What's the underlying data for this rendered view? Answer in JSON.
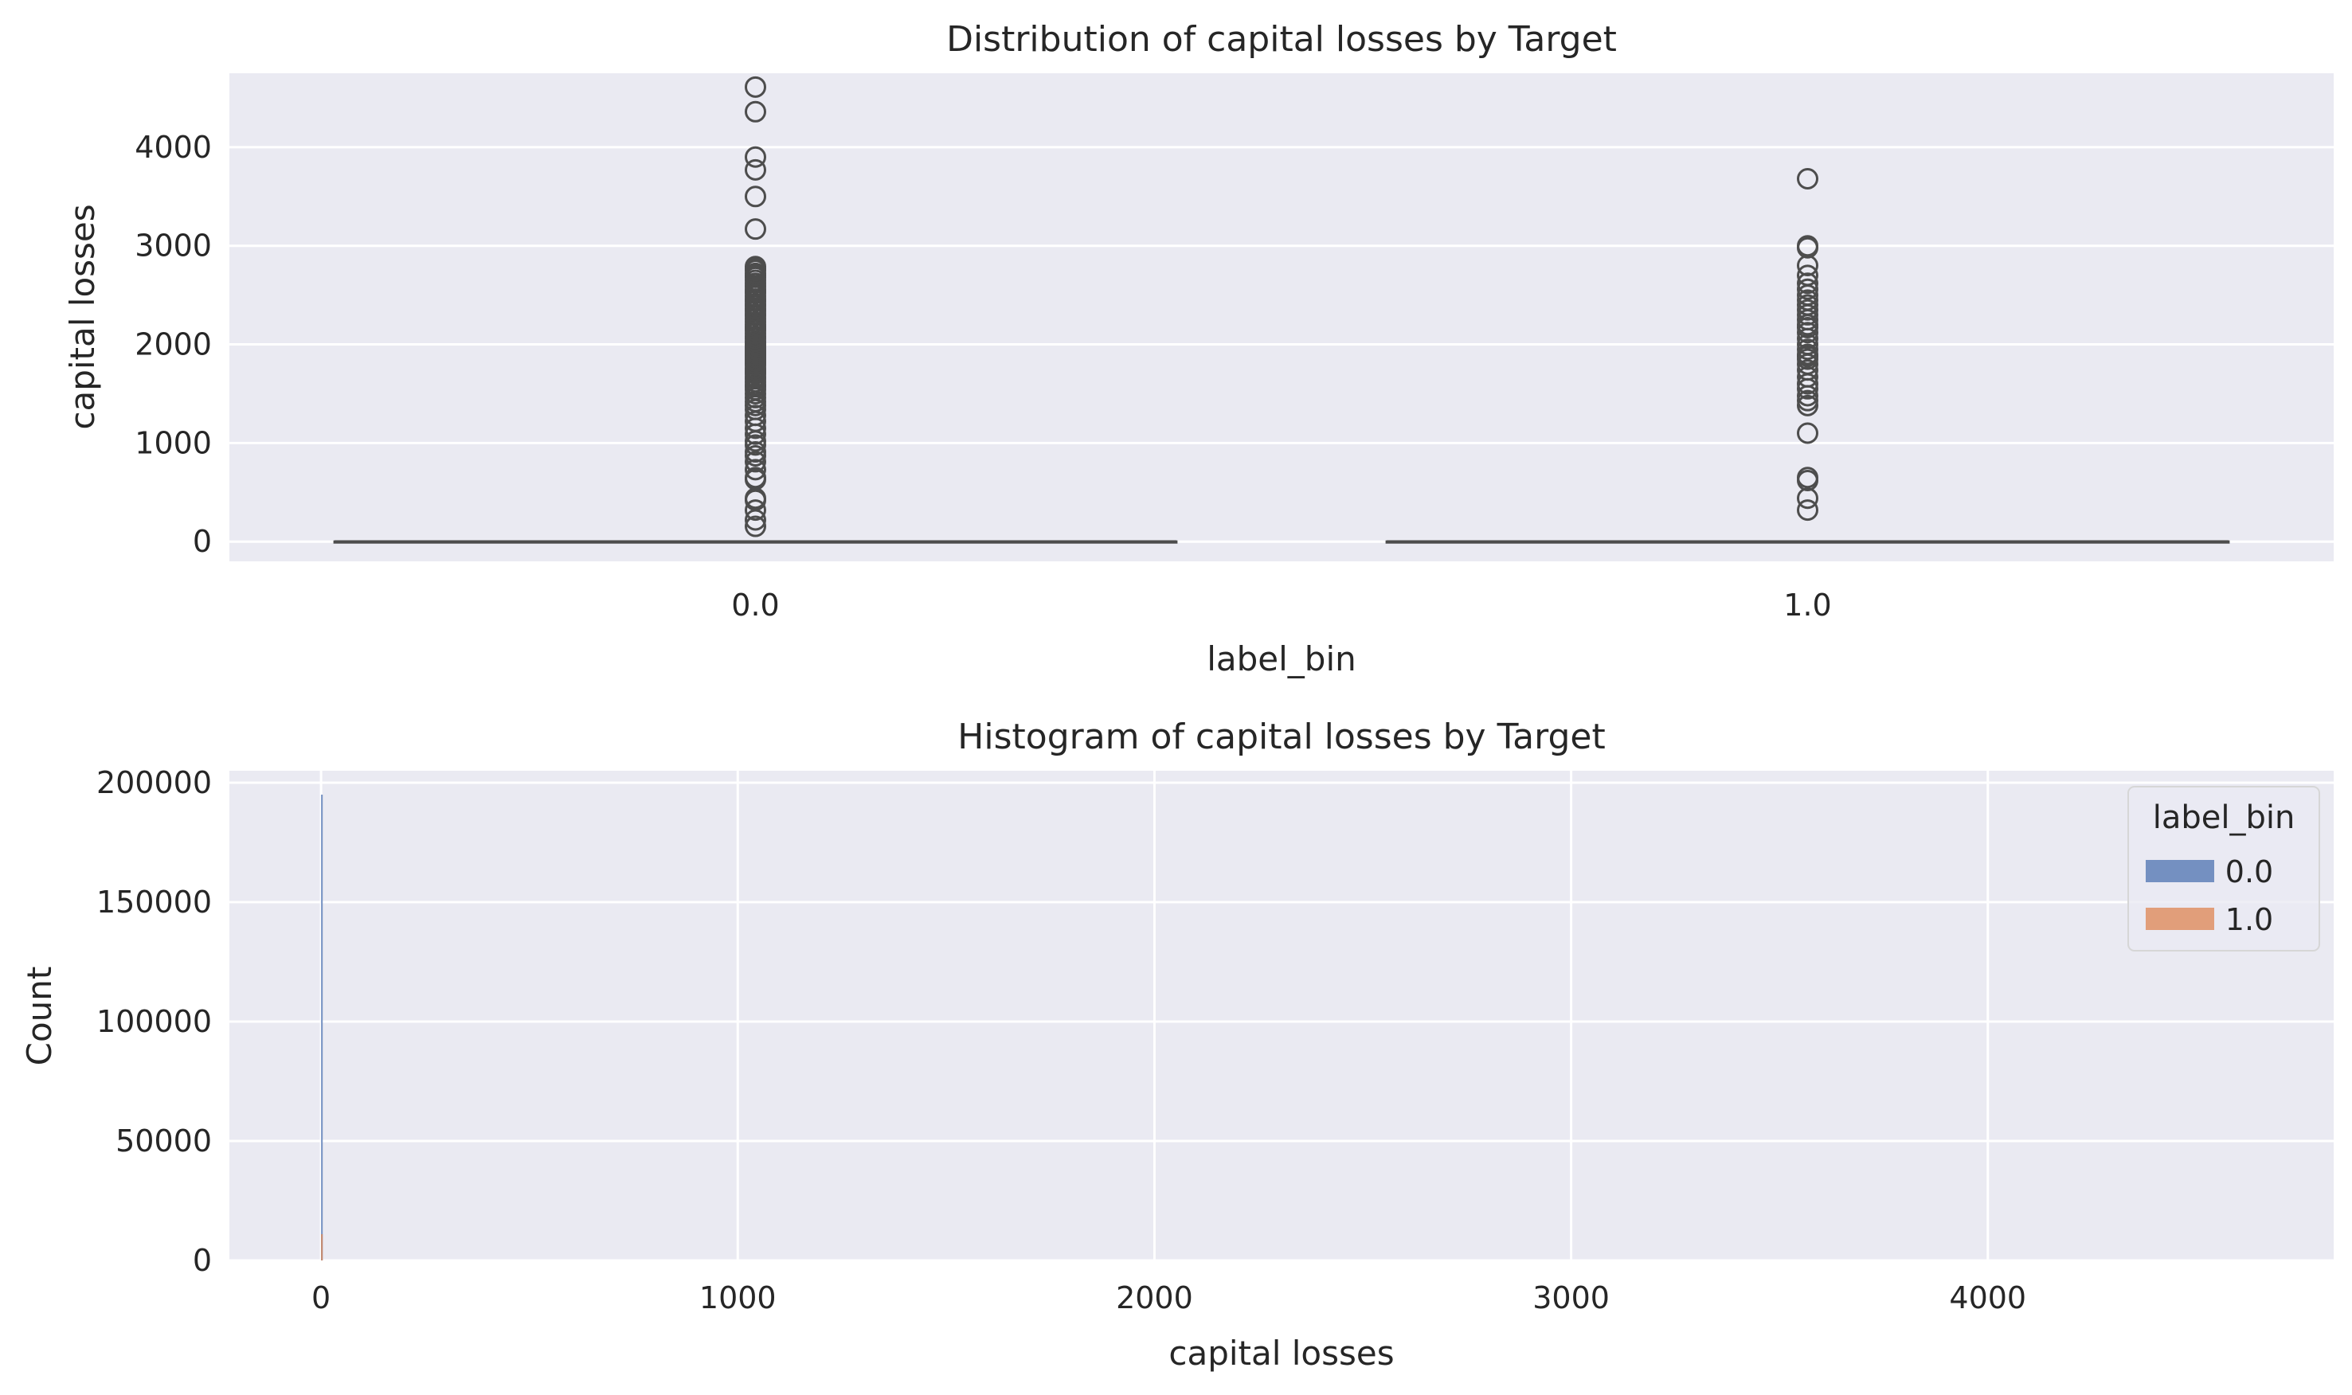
{
  "chart_data": [
    {
      "type": "box",
      "title": "Distribution of capital losses by Target",
      "xlabel": "label_bin",
      "ylabel": "capital losses",
      "categories": [
        "0.0",
        "1.0"
      ],
      "ylim": [
        -200,
        4750
      ],
      "yticks": [
        0,
        1000,
        2000,
        3000,
        4000
      ],
      "grid": true,
      "box_color": "#4c72b0",
      "line_color": "#4d4d4d",
      "boxes": [
        {
          "category": "0.0",
          "min": 0,
          "q1": 0,
          "median": 0,
          "q3": 0,
          "max": 0,
          "outliers": [
            155,
            220,
            320,
            420,
            440,
            630,
            650,
            730,
            810,
            870,
            910,
            980,
            1020,
            1090,
            1150,
            1220,
            1280,
            1340,
            1380,
            1420,
            1460,
            1500,
            1540,
            1570,
            1590,
            1620,
            1650,
            1670,
            1700,
            1720,
            1740,
            1760,
            1790,
            1810,
            1830,
            1850,
            1870,
            1890,
            1910,
            1930,
            1950,
            1970,
            1990,
            2010,
            2030,
            2060,
            2080,
            2110,
            2140,
            2160,
            2180,
            2200,
            2230,
            2260,
            2290,
            2310,
            2340,
            2360,
            2390,
            2410,
            2440,
            2460,
            2490,
            2520,
            2540,
            2560,
            2590,
            2620,
            2650,
            2680,
            2700,
            2720,
            2750,
            2770,
            2790,
            3170,
            3500,
            3770,
            3900,
            4360,
            4610
          ]
        },
        {
          "category": "1.0",
          "min": 0,
          "q1": 0,
          "median": 0,
          "q3": 0,
          "max": 0,
          "outliers": [
            320,
            440,
            620,
            650,
            1100,
            1380,
            1430,
            1480,
            1550,
            1600,
            1670,
            1740,
            1800,
            1850,
            1880,
            1900,
            1950,
            2000,
            2060,
            2120,
            2170,
            2200,
            2250,
            2300,
            2350,
            2400,
            2450,
            2500,
            2560,
            2620,
            2700,
            2800,
            2980,
            3000,
            3680
          ]
        }
      ]
    },
    {
      "type": "histogram",
      "title": "Histogram of capital losses by Target",
      "xlabel": "capital losses",
      "ylabel": "Count",
      "xlim": [
        -220,
        4830
      ],
      "ylim": [
        0,
        205000
      ],
      "xticks": [
        0,
        1000,
        2000,
        3000,
        4000
      ],
      "yticks": [
        0,
        50000,
        100000,
        150000,
        200000
      ],
      "grid": true,
      "legend": {
        "title": "label_bin",
        "placement": "top-right"
      },
      "series": [
        {
          "name": "0.0",
          "color": "#4c72b0",
          "bins": [
            {
              "x0": 0,
              "x1": 4,
              "count": 195000
            }
          ]
        },
        {
          "name": "1.0",
          "color": "#dd8452",
          "bins": [
            {
              "x0": 0,
              "x1": 4,
              "count": 11000
            }
          ]
        }
      ]
    }
  ]
}
